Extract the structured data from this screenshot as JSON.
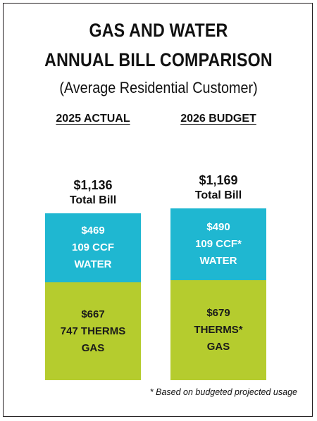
{
  "title_line1": "GAS AND WATER",
  "title_line2": "ANNUAL BILL COMPARISON",
  "subtitle": "(Average Residential Customer)",
  "footnote": "* Based on budgeted projected usage",
  "colors": {
    "water": "#1fb7d1",
    "gas": "#b5cc2e",
    "border": "#231f20"
  },
  "chart_data": {
    "type": "bar",
    "stacked": true,
    "categories": [
      "2025 ACTUAL",
      "2026 BUDGET"
    ],
    "series": [
      {
        "values": [
          667,
          679
        ],
        "labels": [
          [
            "$667",
            "747 THERMS",
            "GAS"
          ],
          [
            "$679",
            "THERMS*",
            "GAS"
          ]
        ]
      },
      {
        "values": [
          469,
          490
        ],
        "labels": [
          [
            "$469",
            "109 CCF",
            "WATER"
          ],
          [
            "$490",
            "109 CCF*",
            "WATER"
          ]
        ]
      }
    ],
    "totals": [
      {
        "amount": "$1,136",
        "label": "Total Bill"
      },
      {
        "amount": "$1,169",
        "label": "Total Bill"
      }
    ]
  }
}
